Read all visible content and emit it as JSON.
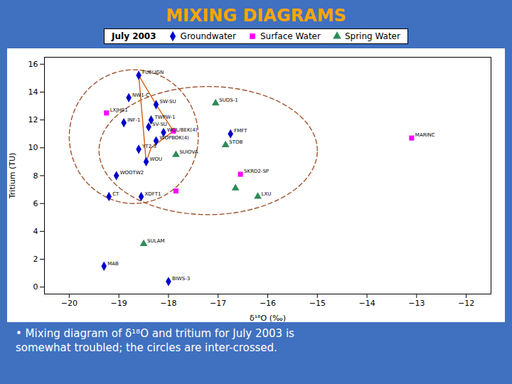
{
  "chart_data": {
    "type": "scatter",
    "title": "MIXING DIAGRAMS",
    "title_color": "#FFA500",
    "background_color": "#4070C0",
    "plot_color": "#FFFFFF",
    "xlabel": "δ¹⁸O (‰)",
    "ylabel": "Tritium (TU)",
    "xlim": [
      -20.5,
      -11.5
    ],
    "ylim": [
      -0.5,
      16.5
    ],
    "xticks": [
      -20,
      -19,
      -18,
      -17,
      -16,
      -15,
      -14,
      -13,
      -12
    ],
    "yticks": [
      0,
      2,
      4,
      6,
      8,
      10,
      12,
      14,
      16
    ],
    "legend": "top",
    "legend_title": "July 2003",
    "series": [
      {
        "name": "Groundwater",
        "color": "#0000CD",
        "marker": "diamond",
        "x": [
          -18.6,
          -18.8,
          -18.25,
          -18.9,
          -18.35,
          -18.1,
          -18.25,
          -18.6,
          -18.45,
          -19.2,
          -18.55,
          -19.3,
          -18.0,
          -19.05,
          -16.75,
          -18.4
        ],
        "values": [
          15.2,
          13.6,
          13.1,
          11.8,
          12.0,
          11.1,
          10.5,
          9.9,
          9.0,
          6.5,
          6.5,
          1.5,
          0.4,
          8.0,
          11.0,
          11.5
        ],
        "labels": [
          "FUELIGN",
          "NW1-C",
          "SW-SU",
          "INF-1",
          "TWPW-1",
          "WOL/BEK(4)",
          "WOPBOK(4)",
          "YT2-3",
          "WOU",
          "CT",
          "XDFT1",
          "MAB",
          "BIWS-3",
          "WOOTW2",
          "FMFT",
          "SV-SU"
        ]
      },
      {
        "name": "Surface Water",
        "color": "#FF00FF",
        "marker": "square",
        "x": [
          -19.25,
          -17.9,
          -16.55,
          -17.85,
          -13.1
        ],
        "values": [
          12.5,
          11.2,
          8.1,
          6.9,
          10.7
        ],
        "labels": [
          "LXJH01",
          null,
          "SKRD2-SP",
          null,
          "MARINC"
        ]
      },
      {
        "name": "Spring Water",
        "color": "#2E8B57",
        "marker": "triangle",
        "x": [
          -17.05,
          -16.85,
          -16.65,
          -16.2,
          -18.5,
          -17.85
        ],
        "values": [
          13.2,
          10.2,
          7.1,
          6.5,
          3.1,
          9.5
        ],
        "labels": [
          "SUDS-1",
          "STOB",
          null,
          "LXU",
          "SULAM",
          "SUIOVA"
        ]
      }
    ],
    "ellipses": {
      "color": "#A0522D",
      "line_style": "dashed",
      "items": [
        {
          "cx": -18.7,
          "cy": 10.8,
          "rx": 1.3,
          "ry": 4.8
        },
        {
          "cx": -17.2,
          "cy": 9.8,
          "rx": 2.2,
          "ry": 4.6
        }
      ]
    },
    "polyline": {
      "color": "#D2691E",
      "x": [
        -18.6,
        -18.25,
        -17.9,
        -18.35,
        -18.45,
        -18.6
      ],
      "values": [
        15.2,
        13.1,
        11.2,
        10.0,
        9.0,
        15.2
      ]
    },
    "annotations": [
      "• Mixing diagram of δ¹⁸O and tritium for July 2003 is",
      "somewhat troubled; the circles are inter-crossed."
    ]
  }
}
